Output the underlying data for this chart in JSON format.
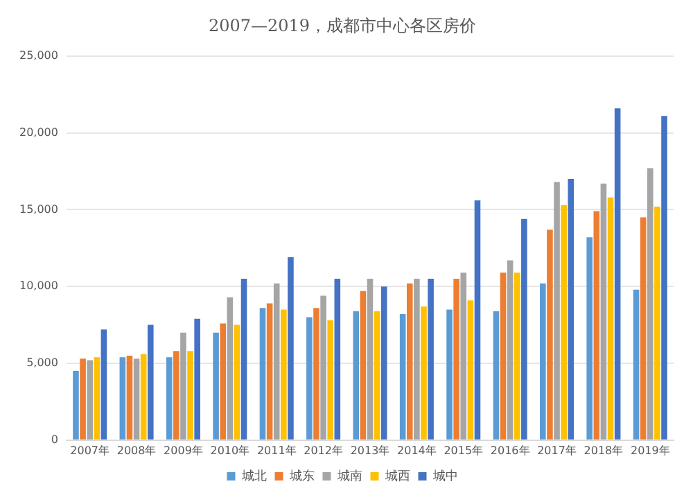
{
  "chart_data": {
    "type": "bar",
    "title": "2007—2019，成都市中心各区房价",
    "categories": [
      "2007年",
      "2008年",
      "2009年",
      "2010年",
      "2011年",
      "2012年",
      "2013年",
      "2014年",
      "2015年",
      "2016年",
      "2017年",
      "2018年",
      "2019年"
    ],
    "series": [
      {
        "name": "城北",
        "color": "#5b9bd5",
        "values": [
          4500,
          5400,
          5400,
          7000,
          8600,
          8000,
          8400,
          8200,
          8500,
          8400,
          10200,
          13200,
          9800
        ]
      },
      {
        "name": "城东",
        "color": "#ed7d31",
        "values": [
          5300,
          5500,
          5800,
          7600,
          8900,
          8600,
          9700,
          10200,
          10500,
          10900,
          13700,
          14900,
          14500
        ]
      },
      {
        "name": "城南",
        "color": "#a5a5a5",
        "values": [
          5200,
          5300,
          7000,
          9300,
          10200,
          9400,
          10500,
          10500,
          10900,
          11700,
          16800,
          16700,
          17700
        ]
      },
      {
        "name": "城西",
        "color": "#ffc000",
        "values": [
          5400,
          5600,
          5800,
          7500,
          8500,
          7800,
          8400,
          8700,
          9100,
          10900,
          15300,
          15800,
          15200
        ]
      },
      {
        "name": "城中",
        "color": "#4472c4",
        "values": [
          7200,
          7500,
          7900,
          10500,
          11900,
          10500,
          10000,
          10500,
          15600,
          14400,
          17000,
          21600,
          21100
        ]
      }
    ],
    "ylim": [
      0,
      25000
    ],
    "yticks": [
      0,
      {
        "value": 5000,
        "label": "5,000"
      },
      {
        "value": 10000,
        "label": "10,000"
      },
      {
        "value": 15000,
        "label": "15,000"
      },
      {
        "value": 20000,
        "label": "20,000"
      },
      {
        "value": 25000,
        "label": "25,000"
      }
    ],
    "grid": "y",
    "legend": "bottom"
  }
}
